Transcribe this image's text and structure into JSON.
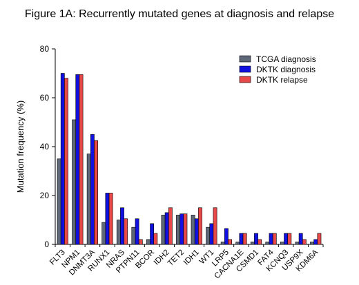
{
  "chart_data": {
    "type": "bar",
    "title": "Figure 1A: Recurrently mutated genes at diagnosis and relapse",
    "xlabel": "",
    "ylabel": "Mutation frequency (%)",
    "ylim": [
      0,
      80
    ],
    "yticks": [
      0,
      20,
      40,
      60,
      80
    ],
    "grid": false,
    "legend_position": "top-right",
    "categories": [
      "FLT3",
      "NPM1",
      "DNMT3A",
      "RUNX1",
      "NRAS",
      "PTPN11",
      "BCOR",
      "IDH2",
      "TET2",
      "IDH1",
      "WT1",
      "LRP5",
      "CACNA1E",
      "CSMD1",
      "FAT4",
      "KCNQ3",
      "USP9X",
      "KDM6A"
    ],
    "series": [
      {
        "name": "TCGA diagnosis",
        "color": "#5f6878",
        "values": [
          35,
          51,
          37,
          9,
          10,
          7,
          2,
          12,
          12,
          12,
          7,
          1,
          1,
          1,
          1,
          1,
          1,
          1
        ]
      },
      {
        "name": "DKTK diagnosis",
        "color": "#1010e0",
        "values": [
          70,
          69.5,
          45,
          21,
          15,
          10.5,
          8.5,
          13,
          12.5,
          10.5,
          8.5,
          6.5,
          4.5,
          4.5,
          4.5,
          4.5,
          4.5,
          2
        ]
      },
      {
        "name": "DKTK relapse",
        "color": "#e84848",
        "values": [
          68,
          69.5,
          42.5,
          21,
          10.5,
          2,
          4.5,
          15,
          12.5,
          15,
          15,
          2,
          4.5,
          2,
          4.5,
          4.5,
          2,
          4.5
        ]
      }
    ]
  }
}
